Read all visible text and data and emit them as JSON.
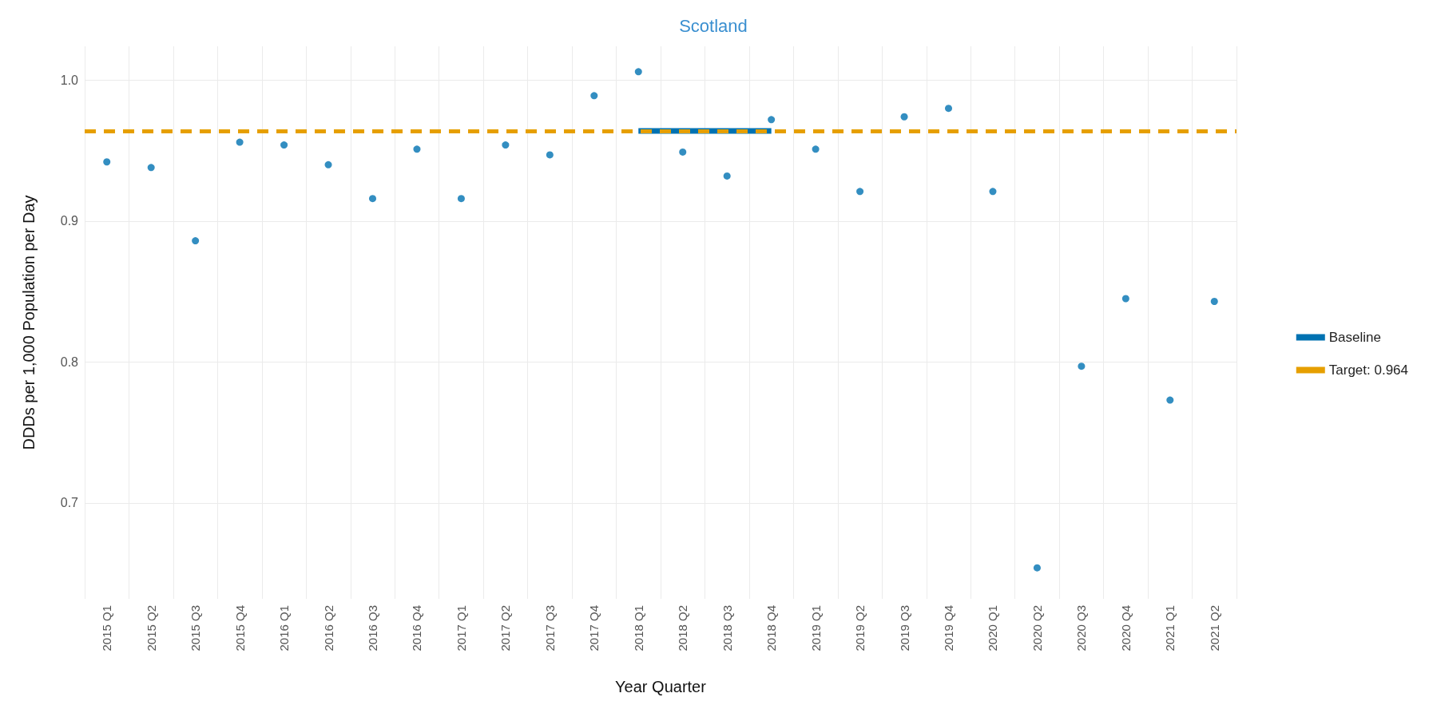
{
  "chart_data": {
    "type": "scatter",
    "title": "Scotland",
    "xlabel": "Year Quarter",
    "ylabel": "DDDs per 1,000 Population per Day",
    "categories": [
      "2015 Q1",
      "2015 Q2",
      "2015 Q3",
      "2015 Q4",
      "2016 Q1",
      "2016 Q2",
      "2016 Q3",
      "2016 Q4",
      "2017 Q1",
      "2017 Q2",
      "2017 Q3",
      "2017 Q4",
      "2018 Q1",
      "2018 Q2",
      "2018 Q3",
      "2018 Q4",
      "2019 Q1",
      "2019 Q2",
      "2019 Q3",
      "2019 Q4",
      "2020 Q1",
      "2020 Q2",
      "2020 Q3",
      "2020 Q4",
      "2021 Q1",
      "2021 Q2"
    ],
    "series": [
      {
        "type": "scatter",
        "color": "#0072b2",
        "marker": "circle",
        "values": [
          0.942,
          0.938,
          0.886,
          0.956,
          0.954,
          0.94,
          0.916,
          0.951,
          0.916,
          0.954,
          0.947,
          0.989,
          1.006,
          0.949,
          0.932,
          0.972,
          0.951,
          0.921,
          0.974,
          0.98,
          0.921,
          0.654,
          0.797,
          0.845,
          0.773,
          0.843
        ]
      },
      {
        "type": "line",
        "name": "Baseline",
        "color": "#0072b2",
        "line_style": "solid",
        "values": [
          null,
          null,
          null,
          null,
          null,
          null,
          null,
          null,
          null,
          null,
          null,
          null,
          0.964,
          0.964,
          0.964,
          0.964,
          null,
          null,
          null,
          null,
          null,
          null,
          null,
          null,
          null,
          null
        ]
      }
    ],
    "ref_lines": [
      {
        "axis": "y",
        "value": 0.964,
        "label": "Target: 0.964",
        "color": "#e69f00",
        "line_style": "dashed"
      }
    ],
    "ylim": [
      0.632,
      1.024
    ],
    "yticks": [
      0.7,
      0.8,
      0.9,
      {
        "value": 1,
        "label": "1.0"
      }
    ],
    "grid": true,
    "legend": "right"
  }
}
